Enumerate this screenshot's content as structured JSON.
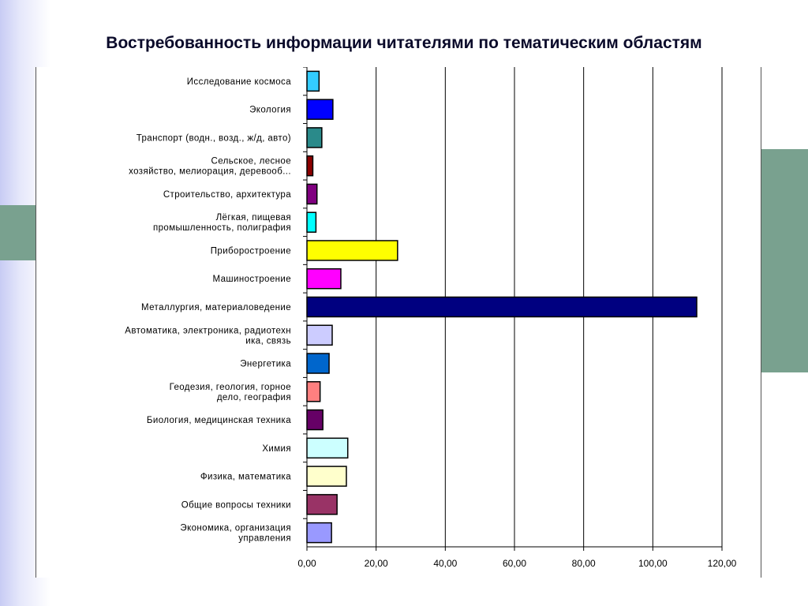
{
  "slide": {
    "title": "Востребованность  информации читателями по тематическим областям"
  },
  "colors": {
    "decor_green": "#79a18f",
    "gridline": "#000000"
  },
  "chart_data": {
    "type": "bar",
    "orientation": "horizontal",
    "title": "",
    "xlabel": "",
    "ylabel": "",
    "xlim": [
      0,
      120
    ],
    "grid": true,
    "legend": "none",
    "x_ticks": [
      "0,00",
      "20,00",
      "40,00",
      "60,00",
      "80,00",
      "100,00",
      "120,00"
    ],
    "categories": [
      [
        "Исследование космоса"
      ],
      [
        "Экология"
      ],
      [
        "Транспорт (водн., возд., ж/д, авто)"
      ],
      [
        "Сельское, лесное",
        "хозяйство, мелиорация, деревооб..."
      ],
      [
        "Строительство, архитектура"
      ],
      [
        "Лёгкая, пищевая",
        "промышленность, полиграфия"
      ],
      [
        "Приборостроение"
      ],
      [
        "Машиностроение"
      ],
      [
        "Металлургия, материаловедение"
      ],
      [
        "Автоматика, электроника, радиотехн",
        "ика, связь"
      ],
      [
        "Энергетика"
      ],
      [
        "Геодезия, геология, горное",
        "дело, география"
      ],
      [
        "Биология, медицинская техника"
      ],
      [
        "Химия"
      ],
      [
        "Физика, математика"
      ],
      [
        "Общие вопросы техники"
      ],
      [
        "Экономика, организация",
        "управления"
      ]
    ],
    "values": [
      3.5,
      7.5,
      4.3,
      1.7,
      2.9,
      2.6,
      26.2,
      9.8,
      112.7,
      7.3,
      6.4,
      3.8,
      4.6,
      11.8,
      11.4,
      8.7,
      7.1
    ],
    "bar_colors": [
      "#33ccff",
      "#0000ff",
      "#2a8a8a",
      "#8b0000",
      "#800080",
      "#00ffff",
      "#ffff00",
      "#ff00ff",
      "#000080",
      "#ccccff",
      "#0066cc",
      "#ff8080",
      "#660066",
      "#ccffff",
      "#ffffcc",
      "#993366",
      "#9999ff"
    ]
  }
}
